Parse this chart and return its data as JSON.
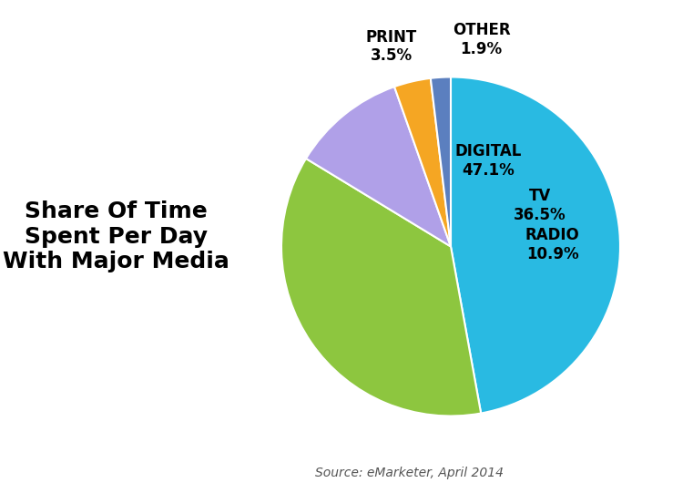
{
  "label_names": [
    "DIGITAL",
    "TV",
    "RADIO",
    "PRINT",
    "OTHER"
  ],
  "values": [
    47.1,
    36.5,
    10.9,
    3.5,
    1.9
  ],
  "percents": [
    "47.1%",
    "36.5%",
    "10.9%",
    "3.5%",
    "1.9%"
  ],
  "colors": [
    "#29BAE2",
    "#8DC63F",
    "#B0A0E8",
    "#F5A623",
    "#5B7FBF"
  ],
  "title": "Share Of Time\nSpent Per Day\nWith Major Media",
  "source": "Source: eMarketer, April 2014",
  "background_color": "#ffffff",
  "startangle": 90,
  "label_fontsize": 12,
  "title_fontsize": 18,
  "source_fontsize": 10
}
